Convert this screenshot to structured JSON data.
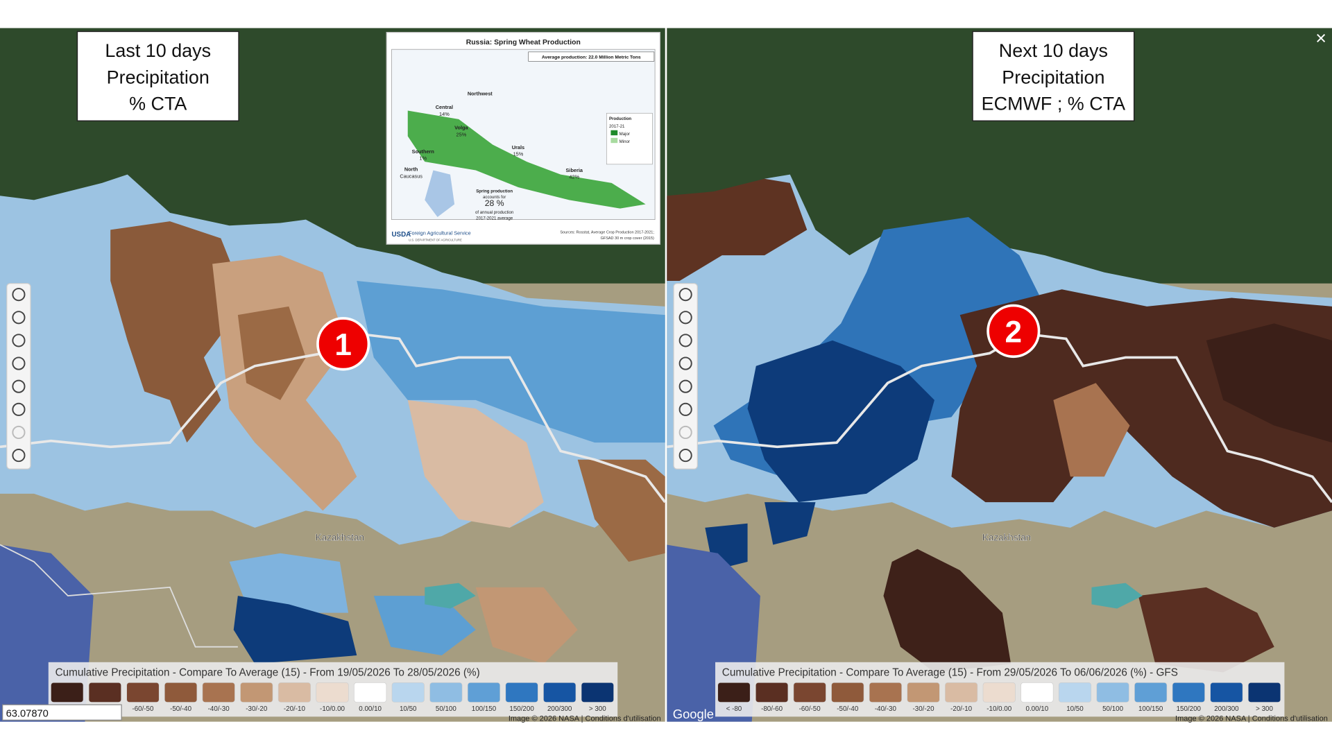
{
  "panels": [
    {
      "title_lines": [
        "Last 10 days",
        "Precipitation",
        "% CTA"
      ],
      "marker": "1",
      "legend_title": "Cumulative Precipitation - Compare To Average (15) - From 19/05/2026 To 28/05/2026 (%)",
      "place_label": "Kazakhstan",
      "attribution": "Image © 2026 NASA | Conditions d'utilisation"
    },
    {
      "title_lines": [
        "Next 10 days",
        "Precipitation",
        "ECMWF ; % CTA"
      ],
      "marker": "2",
      "legend_title": "Cumulative Precipitation - Compare To Average (15) - From 29/05/2026 To 06/06/2026 (%) - GFS",
      "place_label": "Kazakhstan",
      "attribution": "Image © 2026 NASA | Conditions d'utilisation"
    }
  ],
  "legend": {
    "labels": [
      "< -80",
      "-80/-60",
      "-60/-50",
      "-50/-40",
      "-40/-30",
      "-30/-20",
      "-20/-10",
      "-10/0.00",
      "0.00/10",
      "10/50",
      "50/100",
      "100/150",
      "150/200",
      "200/300",
      "> 300"
    ],
    "colors": [
      "#3b1f18",
      "#5a2f22",
      "#7a4630",
      "#8f5a3b",
      "#a87350",
      "#c29774",
      "#d9bba3",
      "#ecdccf",
      "#ffffff",
      "#b9d6ee",
      "#8fbde3",
      "#5f9fd6",
      "#2f77c0",
      "#1655a3",
      "#0b3472"
    ]
  },
  "coordinates": "63.07870",
  "logo": "Google",
  "close": "×",
  "inset": {
    "title": "Russia: Spring Wheat Production",
    "average": "Average production: 22.0 Million Metric Tons",
    "regions": [
      {
        "name": "Northwest",
        "pct": null
      },
      {
        "name": "Central",
        "pct": "14%"
      },
      {
        "name": "Volga",
        "pct": "25%"
      },
      {
        "name": "Southern",
        "pct": "1%"
      },
      {
        "name": "North",
        "pct": "Caucasus"
      },
      {
        "name": "Urals",
        "pct": "15%"
      },
      {
        "name": "Siberia",
        "pct": "42%"
      }
    ],
    "spring_lines": [
      "Spring production",
      "accounts for",
      "28 %",
      "of annual production",
      "2017-2021 average"
    ],
    "legend_lines": [
      "Production",
      "2017-21",
      "Major",
      "Minor"
    ],
    "agency": "USDA",
    "agency_name": "Foreign Agricultural Service",
    "department": "U.S. DEPARTMENT OF AGRICULTURE",
    "sources": [
      "Sources: Rosstat, Average Crop Production 2017-2021;",
      "GFSAD 30 m crop cover (2015)"
    ]
  }
}
